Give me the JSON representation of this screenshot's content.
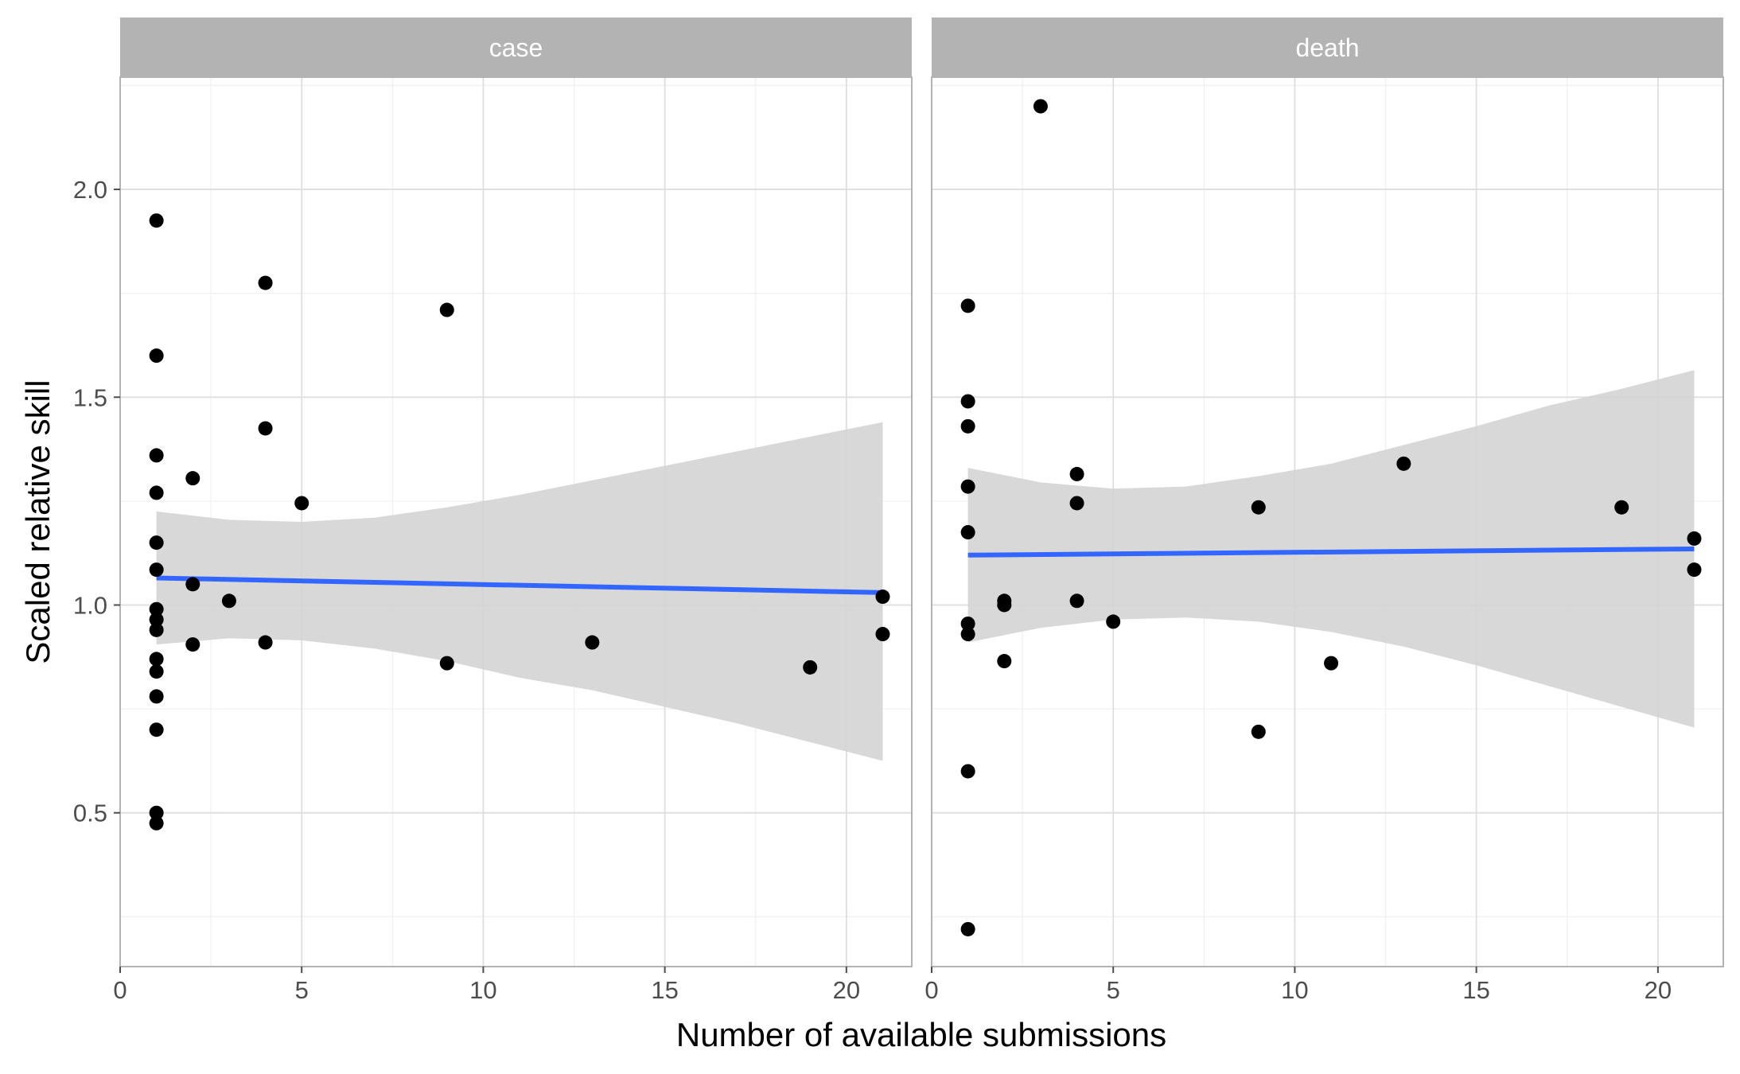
{
  "chart_data": {
    "type": "scatter",
    "xlabel": "Number of available submissions",
    "ylabel": "Scaled relative skill",
    "xlim": [
      0,
      21.8
    ],
    "ylim": [
      0.13,
      2.27
    ],
    "x_ticks": [
      0,
      5,
      10,
      15,
      20
    ],
    "x_tick_labels": [
      "0",
      "5",
      "10",
      "15",
      "20"
    ],
    "y_ticks": [
      0.5,
      1.0,
      1.5,
      2.0
    ],
    "y_tick_labels": [
      "0.5",
      "1.0",
      "1.5",
      "2.0"
    ],
    "grid": true,
    "point_color": "#000000",
    "fit_color": "#3366ff",
    "ribbon_color": "#d4d4d4",
    "strip_color": "#b3b3b3",
    "panels": [
      {
        "facet": "case",
        "points": [
          [
            1,
            1.925
          ],
          [
            1,
            1.6
          ],
          [
            1,
            1.36
          ],
          [
            1,
            1.27
          ],
          [
            1,
            1.15
          ],
          [
            1,
            1.085
          ],
          [
            1,
            0.99
          ],
          [
            1,
            0.965
          ],
          [
            1,
            0.94
          ],
          [
            1,
            0.87
          ],
          [
            1,
            0.84
          ],
          [
            1,
            0.78
          ],
          [
            1,
            0.7
          ],
          [
            1,
            0.5
          ],
          [
            1,
            0.475
          ],
          [
            2,
            1.305
          ],
          [
            2,
            1.05
          ],
          [
            2,
            0.905
          ],
          [
            3,
            1.01
          ],
          [
            4,
            1.775
          ],
          [
            4,
            1.425
          ],
          [
            4,
            0.91
          ],
          [
            5,
            1.245
          ],
          [
            9,
            1.71
          ],
          [
            9,
            0.86
          ],
          [
            13,
            0.91
          ],
          [
            19,
            0.85
          ],
          [
            21,
            1.02
          ],
          [
            21,
            0.93
          ]
        ],
        "fit": {
          "x": [
            1,
            21
          ],
          "y": [
            1.065,
            1.03
          ]
        },
        "band": {
          "x": [
            1,
            3,
            5,
            7,
            9,
            11,
            13,
            15,
            17,
            19,
            21
          ],
          "lower": [
            0.905,
            0.92,
            0.915,
            0.895,
            0.865,
            0.825,
            0.795,
            0.755,
            0.715,
            0.67,
            0.625
          ],
          "upper": [
            1.225,
            1.205,
            1.2,
            1.21,
            1.235,
            1.265,
            1.3,
            1.335,
            1.37,
            1.405,
            1.44
          ]
        }
      },
      {
        "facet": "death",
        "points": [
          [
            1,
            1.72
          ],
          [
            1,
            1.49
          ],
          [
            1,
            1.43
          ],
          [
            1,
            1.285
          ],
          [
            1,
            1.175
          ],
          [
            1,
            0.955
          ],
          [
            1,
            0.93
          ],
          [
            1,
            0.6
          ],
          [
            1,
            0.22
          ],
          [
            2,
            1.01
          ],
          [
            2,
            1.0
          ],
          [
            2,
            0.865
          ],
          [
            3,
            2.2
          ],
          [
            4,
            1.315
          ],
          [
            4,
            1.245
          ],
          [
            4,
            1.01
          ],
          [
            5,
            0.96
          ],
          [
            9,
            1.235
          ],
          [
            9,
            0.695
          ],
          [
            11,
            0.86
          ],
          [
            13,
            1.34
          ],
          [
            19,
            1.235
          ],
          [
            21,
            1.16
          ],
          [
            21,
            1.085
          ]
        ],
        "fit": {
          "x": [
            1,
            21
          ],
          "y": [
            1.12,
            1.135
          ]
        },
        "band": {
          "x": [
            1,
            3,
            5,
            7,
            9,
            11,
            13,
            15,
            17,
            19,
            21
          ],
          "lower": [
            0.91,
            0.945,
            0.965,
            0.97,
            0.96,
            0.935,
            0.9,
            0.855,
            0.805,
            0.755,
            0.705
          ],
          "upper": [
            1.33,
            1.295,
            1.28,
            1.285,
            1.31,
            1.34,
            1.385,
            1.43,
            1.48,
            1.52,
            1.565
          ]
        }
      }
    ]
  }
}
